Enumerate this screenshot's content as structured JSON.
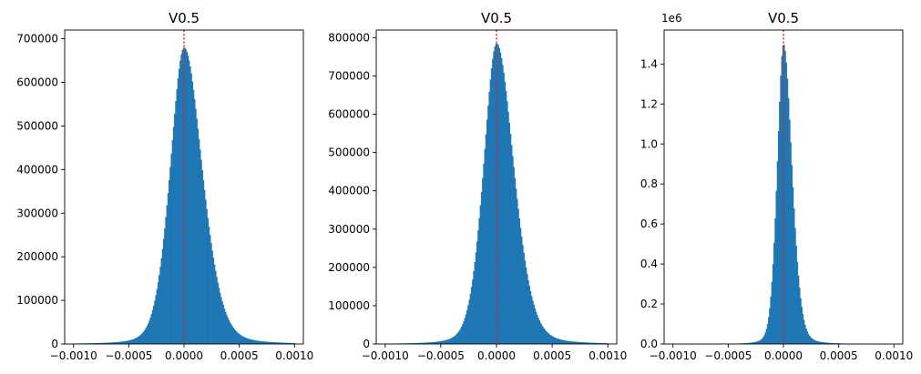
{
  "chart_data": [
    {
      "type": "bar",
      "title": "V0.5",
      "xlabel": "",
      "ylabel": "",
      "xlim": [
        -0.00108,
        0.00108
      ],
      "ylim": [
        0,
        720000
      ],
      "xticks": [
        -0.001,
        -0.0005,
        0.0,
        0.0005,
        0.001
      ],
      "xtick_labels": [
        "−0.0010",
        "−0.0005",
        "0.0000",
        "0.0005",
        "0.0010"
      ],
      "yticks": [
        0,
        100000,
        200000,
        300000,
        400000,
        500000,
        600000,
        700000
      ],
      "ytick_labels": [
        "0",
        "100000",
        "200000",
        "300000",
        "400000",
        "500000",
        "600000",
        "700000"
      ],
      "y_offset_label": "",
      "bar_color": "#1f77b4",
      "reference_line": {
        "x": 0.0,
        "color": "#d62728",
        "style": "dotted"
      },
      "histogram": {
        "range": [
          -0.001,
          0.001
        ],
        "peak_x": 0.0,
        "peak": 680000,
        "sigma_left": 0.000135,
        "sigma_right": 0.000175,
        "tail": 0.4
      }
    },
    {
      "type": "bar",
      "title": "V0.5",
      "xlabel": "",
      "ylabel": "",
      "xlim": [
        -0.00108,
        0.00108
      ],
      "ylim": [
        0,
        820000
      ],
      "xticks": [
        -0.001,
        -0.0005,
        0.0,
        0.0005,
        0.001
      ],
      "xtick_labels": [
        "−0.0010",
        "−0.0005",
        "0.0000",
        "0.0005",
        "0.0010"
      ],
      "yticks": [
        0,
        100000,
        200000,
        300000,
        400000,
        500000,
        600000,
        700000,
        800000
      ],
      "ytick_labels": [
        "0",
        "100000",
        "200000",
        "300000",
        "400000",
        "500000",
        "600000",
        "700000",
        "800000"
      ],
      "y_offset_label": "",
      "bar_color": "#1f77b4",
      "reference_line": {
        "x": 0.0,
        "color": "#d62728",
        "style": "dotted"
      },
      "histogram": {
        "range": [
          -0.001,
          0.001
        ],
        "peak_x": 0.0,
        "peak": 785000,
        "sigma_left": 0.000125,
        "sigma_right": 0.000165,
        "tail": 0.4
      }
    },
    {
      "type": "bar",
      "title": "V0.5",
      "xlabel": "",
      "ylabel": "",
      "xlim": [
        -0.00108,
        0.00108
      ],
      "ylim": [
        0,
        1.57
      ],
      "xticks": [
        -0.001,
        -0.0005,
        0.0,
        0.0005,
        0.001
      ],
      "xtick_labels": [
        "−0.0010",
        "−0.0005",
        "0.0000",
        "0.0005",
        "0.0010"
      ],
      "yticks": [
        0,
        0.2,
        0.4,
        0.6,
        0.8,
        1.0,
        1.2,
        1.4
      ],
      "ytick_labels": [
        "0.0",
        "0.2",
        "0.4",
        "0.6",
        "0.8",
        "1.0",
        "1.2",
        "1.4"
      ],
      "y_offset_label": "1e6",
      "bar_color": "#1f77b4",
      "reference_line": {
        "x": 0.0,
        "color": "#d62728",
        "style": "dotted"
      },
      "histogram": {
        "range": [
          -0.001,
          0.001
        ],
        "peak_x": 0.0,
        "peak": 1.5,
        "sigma_left": 6e-05,
        "sigma_right": 8e-05,
        "tail": 0.35
      }
    }
  ]
}
